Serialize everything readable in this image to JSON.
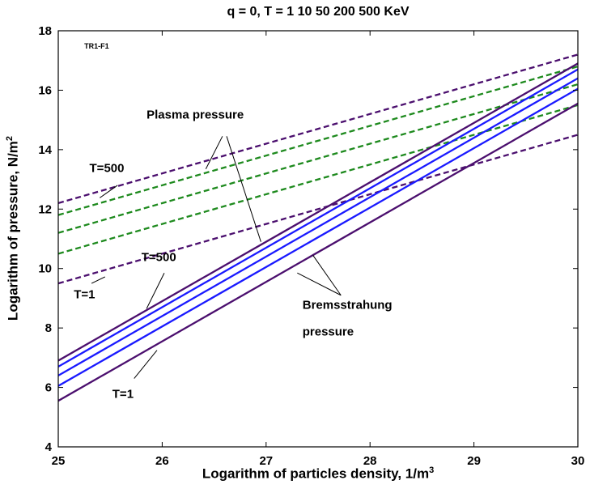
{
  "chart_data": {
    "type": "line",
    "title": "q = 0, T = 1   10   50  200  500 KeV",
    "xlabel": {
      "text": "Logarithm of particles density, 1/m",
      "sup": "3"
    },
    "ylabel": {
      "text": "Logarithm of pressure, N/m",
      "sup": "2"
    },
    "xlim": [
      25,
      30
    ],
    "ylim": [
      4,
      18
    ],
    "xticks": [
      25,
      26,
      27,
      28,
      29,
      30
    ],
    "yticks": [
      4,
      6,
      8,
      10,
      12,
      14,
      16,
      18
    ],
    "grid": false,
    "series": [
      {
        "group": "Plasma pressure",
        "T": 500,
        "style": "dashed",
        "color": "#4b0f6e",
        "x": [
          25,
          30
        ],
        "y": [
          12.2,
          17.2
        ]
      },
      {
        "group": "Plasma pressure",
        "T": 200,
        "style": "dashed",
        "color": "#1e8a1e",
        "x": [
          25,
          30
        ],
        "y": [
          11.8,
          16.8
        ]
      },
      {
        "group": "Plasma pressure",
        "T": 50,
        "style": "dashed",
        "color": "#1e8a1e",
        "x": [
          25,
          30
        ],
        "y": [
          11.2,
          16.2
        ]
      },
      {
        "group": "Plasma pressure",
        "T": 10,
        "style": "dashed",
        "color": "#1e8a1e",
        "x": [
          25,
          30
        ],
        "y": [
          10.5,
          15.5
        ]
      },
      {
        "group": "Plasma pressure",
        "T": 1,
        "style": "dashed",
        "color": "#4b0f6e",
        "x": [
          25,
          30
        ],
        "y": [
          9.5,
          14.5
        ]
      },
      {
        "group": "Bremsstrahung pressure",
        "T": 500,
        "style": "solid",
        "color": "#4b0f6e",
        "x": [
          25,
          30
        ],
        "y": [
          6.9,
          16.9
        ]
      },
      {
        "group": "Bremsstrahung pressure",
        "T": 200,
        "style": "solid",
        "color": "#1a1aff",
        "x": [
          25,
          30
        ],
        "y": [
          6.7,
          16.7
        ]
      },
      {
        "group": "Bremsstrahung pressure",
        "T": 50,
        "style": "solid",
        "color": "#1a1aff",
        "x": [
          25,
          30
        ],
        "y": [
          6.4,
          16.4
        ]
      },
      {
        "group": "Bremsstrahung pressure",
        "T": 10,
        "style": "solid",
        "color": "#1a1aff",
        "x": [
          25,
          30
        ],
        "y": [
          6.05,
          16.05
        ]
      },
      {
        "group": "Bremsstrahung pressure",
        "T": 1,
        "style": "solid",
        "color": "#4b0f6e",
        "x": [
          25,
          30
        ],
        "y": [
          5.55,
          15.55
        ]
      }
    ],
    "annotations": [
      {
        "id": "tag",
        "text": "TR1-F1",
        "x": 25.25,
        "y": 17.4,
        "size": 9
      },
      {
        "id": "plasma-label",
        "text": "Plasma pressure",
        "x": 25.85,
        "y": 15.05,
        "size": 15,
        "arrows": [
          [
            26.58,
            14.45,
            26.42,
            13.35
          ],
          [
            26.62,
            14.45,
            26.95,
            10.9
          ]
        ]
      },
      {
        "id": "plasma-t500",
        "text": "T=500",
        "x": 25.3,
        "y": 13.25,
        "size": 15,
        "arrows": [
          [
            25.57,
            12.8,
            25.4,
            12.38
          ]
        ]
      },
      {
        "id": "plasma-t1",
        "text": "T=1",
        "x": 25.15,
        "y": 9.0,
        "size": 15,
        "arrows": [
          [
            25.32,
            9.5,
            25.45,
            9.72
          ]
        ]
      },
      {
        "id": "brems-t500",
        "text": "T=500",
        "x": 25.8,
        "y": 10.25,
        "size": 15,
        "arrows": [
          [
            26.02,
            9.85,
            25.85,
            8.65
          ]
        ]
      },
      {
        "id": "brems-label",
        "text": "Bremsstrahung",
        "x": 27.35,
        "y": 8.65,
        "size": 15,
        "arrows": [
          [
            27.72,
            9.1,
            27.3,
            9.85
          ],
          [
            27.72,
            9.1,
            27.45,
            10.45
          ]
        ]
      },
      {
        "id": "brems-label-2",
        "text": "pressure",
        "x": 27.35,
        "y": 7.75,
        "size": 15
      },
      {
        "id": "brems-t1",
        "text": "T=1",
        "x": 25.52,
        "y": 5.65,
        "size": 15,
        "arrows": [
          [
            25.73,
            6.3,
            25.95,
            7.25
          ]
        ]
      }
    ]
  }
}
